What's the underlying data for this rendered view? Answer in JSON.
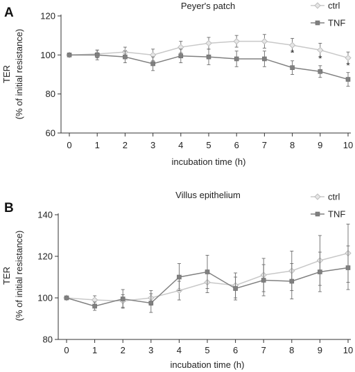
{
  "chart_data": [
    {
      "panel_label": "A",
      "type": "line",
      "title": "Peyer's patch",
      "xlabel": "incubation time (h)",
      "ylabel_lines": [
        "TER",
        "(% of initial resistance)"
      ],
      "x": [
        0,
        1,
        2,
        3,
        4,
        5,
        6,
        7,
        8,
        9,
        10
      ],
      "xlim": [
        0,
        10
      ],
      "ylim": [
        60,
        120
      ],
      "yticks": [
        60,
        80,
        100,
        120
      ],
      "grid": false,
      "legend_position": "top-right",
      "series": [
        {
          "name": "ctrl",
          "marker": "diamond",
          "color": "#c8c8c8",
          "values": [
            100,
            100.5,
            101.5,
            100,
            104,
            106,
            107,
            107,
            105,
            102.5,
            98.5
          ],
          "errors": [
            0,
            2,
            2.5,
            3,
            3,
            3,
            3,
            3.5,
            3.5,
            3.5,
            3
          ]
        },
        {
          "name": "TNF",
          "marker": "square",
          "color": "#808080",
          "values": [
            100,
            100,
            99,
            95.5,
            99.5,
            99,
            98,
            98,
            93.5,
            91.5,
            87.5
          ],
          "errors": [
            0,
            2.5,
            3,
            3.5,
            3.5,
            4,
            4,
            4,
            3.5,
            3,
            3.5
          ]
        }
      ],
      "annotations": [
        {
          "text": "*",
          "x": 8,
          "y": 99.5
        },
        {
          "text": "*",
          "x": 9,
          "y": 96.5
        },
        {
          "text": "*",
          "x": 10,
          "y": 93
        }
      ]
    },
    {
      "panel_label": "B",
      "type": "line",
      "title": "Villus epithelium",
      "xlabel": "incubation time (h)",
      "ylabel_lines": [
        "TER",
        "(% of initial resistance)"
      ],
      "x": [
        0,
        1,
        2,
        3,
        4,
        5,
        6,
        7,
        8,
        9,
        10
      ],
      "xlim": [
        0,
        10
      ],
      "ylim": [
        80,
        140
      ],
      "yticks": [
        80,
        100,
        120,
        140
      ],
      "grid": false,
      "legend_position": "top-right",
      "series": [
        {
          "name": "ctrl",
          "marker": "diamond",
          "color": "#c8c8c8",
          "values": [
            100,
            99,
            98.5,
            100,
            103.5,
            107.5,
            106,
            111,
            113,
            118,
            121.5
          ],
          "errors": [
            0,
            2,
            3,
            3.5,
            4.5,
            5,
            6,
            8,
            9.5,
            12,
            14
          ]
        },
        {
          "name": "TNF",
          "marker": "square",
          "color": "#808080",
          "values": [
            100,
            96,
            99.5,
            97.5,
            110,
            112.5,
            104.5,
            108.5,
            108,
            112.5,
            114.5
          ],
          "errors": [
            0,
            2,
            4.5,
            4.5,
            6.5,
            8,
            5.5,
            7.5,
            8.5,
            9.5,
            10.5
          ]
        }
      ],
      "annotations": []
    }
  ]
}
